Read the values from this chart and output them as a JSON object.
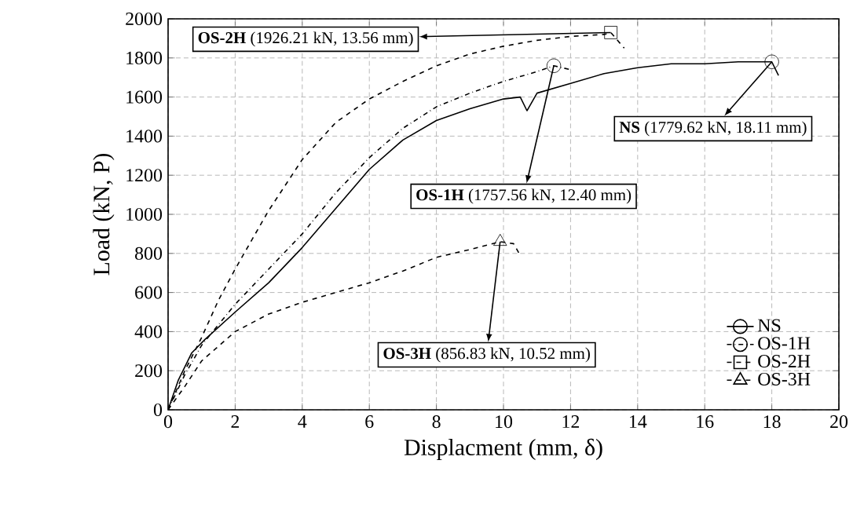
{
  "chart_data": {
    "type": "line",
    "xlabel": "Displacment (mm, δ)",
    "ylabel": "Load (kN, P)",
    "xlim": [
      0,
      20
    ],
    "ylim": [
      0,
      2000
    ],
    "xticks": [
      0,
      2,
      4,
      6,
      8,
      10,
      12,
      14,
      16,
      18,
      20
    ],
    "yticks": [
      0,
      200,
      400,
      600,
      800,
      1000,
      1200,
      1400,
      1600,
      1800,
      2000
    ],
    "grid": true,
    "legend": "bottom right",
    "series": [
      {
        "name": "NS",
        "color": "#000000",
        "line_style": "solid",
        "x": [
          0,
          0.3,
          0.7,
          1.1,
          2,
          3,
          4,
          5,
          6,
          7,
          8,
          9,
          10,
          10.5,
          10.7,
          11,
          12,
          13,
          14,
          15,
          16,
          17,
          18,
          18.2
        ],
        "values": [
          0,
          150,
          290,
          360,
          500,
          650,
          830,
          1030,
          1230,
          1380,
          1480,
          1540,
          1590,
          1600,
          1530,
          1620,
          1670,
          1720,
          1750,
          1770,
          1770,
          1780,
          1780,
          1710
        ]
      },
      {
        "type": "scatter",
        "color": "#000000",
        "marker": "circle",
        "x": [
          18
        ],
        "values": [
          1780
        ]
      },
      {
        "name": "OS-1H",
        "color": "#000000",
        "line_style": "dashdot",
        "x": [
          0,
          0.5,
          1,
          2,
          3,
          4,
          5,
          6,
          7,
          8,
          9,
          10,
          11,
          11.5,
          12
        ],
        "values": [
          0,
          180,
          330,
          540,
          720,
          900,
          1110,
          1290,
          1440,
          1550,
          1620,
          1680,
          1730,
          1760,
          1740
        ]
      },
      {
        "type": "scatter",
        "color": "#000000",
        "marker": "circle",
        "x": [
          11.5
        ],
        "values": [
          1760
        ]
      },
      {
        "name": "OS-2H",
        "color": "#000000",
        "line_style": "dashed",
        "x": [
          0,
          0.5,
          1,
          1.5,
          2,
          2.5,
          3,
          4,
          5,
          6,
          7,
          8,
          9,
          10,
          11,
          12,
          13,
          13.2,
          13.6
        ],
        "values": [
          0,
          200,
          370,
          560,
          720,
          870,
          1020,
          1280,
          1470,
          1590,
          1680,
          1760,
          1820,
          1860,
          1890,
          1910,
          1920,
          1930,
          1850
        ]
      },
      {
        "type": "scatter",
        "color": "#000000",
        "marker": "square",
        "x": [
          13.2
        ],
        "values": [
          1930
        ]
      },
      {
        "name": "OS-3H",
        "color": "#000000",
        "line_style": "dashed",
        "x": [
          0,
          0.5,
          1,
          2,
          3,
          4,
          5,
          6,
          7,
          8,
          9,
          9.9,
          10.3,
          10.5
        ],
        "values": [
          0,
          120,
          250,
          400,
          490,
          550,
          600,
          650,
          710,
          780,
          820,
          860,
          850,
          790
        ]
      },
      {
        "type": "scatter",
        "color": "#000000",
        "marker": "triangle",
        "x": [
          9.9
        ],
        "values": [
          860
        ]
      }
    ],
    "annotations": [
      "**NS** (1779.62 kN, 18.11 mm)",
      "**OS-1H** (1757.56 kN, 12.40 mm)",
      "**OS-2H** (1926.21  kN, 13.56 mm)",
      "**OS-3H** (856.83 kN, 10.52 mm)"
    ]
  }
}
